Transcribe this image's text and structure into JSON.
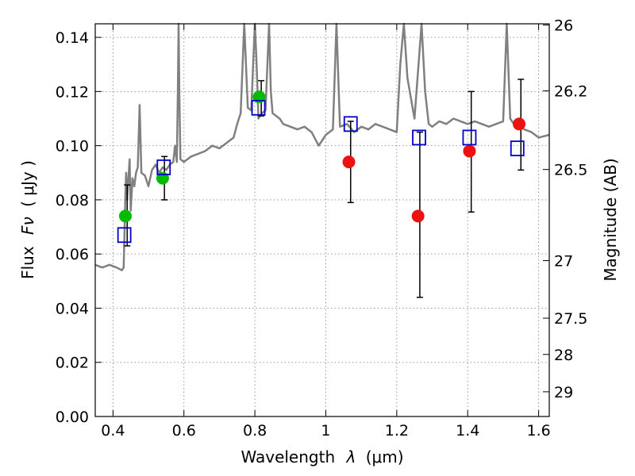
{
  "chart_data": {
    "type": "scatter",
    "xlabel_main": "Wavelength",
    "xlabel_symbol": "λ",
    "xlabel_unit": "(μm)",
    "ylabel_main": "Flux",
    "ylabel_symbol": "Fν",
    "ylabel_unit": "( μJy )",
    "y2label": "Magnitude (AB)",
    "xlim": [
      0.35,
      1.63
    ],
    "ylim": [
      0.0,
      0.145
    ],
    "grid": true,
    "x_ticks": [
      {
        "value": 0.4,
        "label": "0.4"
      },
      {
        "value": 0.6,
        "label": "0.6"
      },
      {
        "value": 0.8,
        "label": "0.8"
      },
      {
        "value": 1.0,
        "label": "1"
      },
      {
        "value": 1.2,
        "label": "1.2"
      },
      {
        "value": 1.4,
        "label": "1.4"
      },
      {
        "value": 1.6,
        "label": "1.6"
      }
    ],
    "y_ticks": [
      {
        "value": 0.0,
        "label": "0.00"
      },
      {
        "value": 0.02,
        "label": "0.02"
      },
      {
        "value": 0.04,
        "label": "0.04"
      },
      {
        "value": 0.06,
        "label": "0.06"
      },
      {
        "value": 0.08,
        "label": "0.08"
      },
      {
        "value": 0.1,
        "label": "0.10"
      },
      {
        "value": 0.12,
        "label": "0.12"
      },
      {
        "value": 0.14,
        "label": "0.14"
      }
    ],
    "y2_ticks": [
      {
        "value": 26,
        "label": "26"
      },
      {
        "value": 26.2,
        "label": "26.2"
      },
      {
        "value": 26.5,
        "label": "26.5"
      },
      {
        "value": 27,
        "label": "27"
      },
      {
        "value": 27.5,
        "label": "27.5"
      },
      {
        "value": 28,
        "label": "28"
      },
      {
        "value": 29,
        "label": "29"
      }
    ],
    "colors": {
      "model": "#808080",
      "green": "#00bb00",
      "red": "#ee1111",
      "square": "#0000cc",
      "errorbar": "#000000",
      "grid": "#999999"
    },
    "model_spectrum": {
      "x": [
        0.35,
        0.37,
        0.39,
        0.41,
        0.425,
        0.43,
        0.432,
        0.435,
        0.437,
        0.44,
        0.443,
        0.447,
        0.45,
        0.455,
        0.46,
        0.465,
        0.47,
        0.475,
        0.48,
        0.49,
        0.5,
        0.51,
        0.52,
        0.53,
        0.54,
        0.55,
        0.56,
        0.57,
        0.575,
        0.58,
        0.583,
        0.585,
        0.587,
        0.59,
        0.6,
        0.62,
        0.64,
        0.66,
        0.68,
        0.7,
        0.72,
        0.74,
        0.75,
        0.76,
        0.77,
        0.78,
        0.79,
        0.795,
        0.8,
        0.805,
        0.81,
        0.815,
        0.82,
        0.83,
        0.84,
        0.845,
        0.85,
        0.86,
        0.87,
        0.88,
        0.9,
        0.92,
        0.94,
        0.96,
        0.98,
        1.0,
        1.02,
        1.03,
        1.04,
        1.06,
        1.08,
        1.1,
        1.12,
        1.14,
        1.16,
        1.18,
        1.2,
        1.21,
        1.22,
        1.23,
        1.25,
        1.27,
        1.28,
        1.29,
        1.3,
        1.32,
        1.34,
        1.36,
        1.38,
        1.4,
        1.42,
        1.44,
        1.46,
        1.48,
        1.5,
        1.51,
        1.52,
        1.53,
        1.54,
        1.56,
        1.58,
        1.6,
        1.63
      ],
      "y": [
        0.056,
        0.055,
        0.056,
        0.055,
        0.054,
        0.055,
        0.065,
        0.082,
        0.09,
        0.08,
        0.087,
        0.095,
        0.076,
        0.088,
        0.085,
        0.09,
        0.092,
        0.115,
        0.09,
        0.089,
        0.085,
        0.091,
        0.093,
        0.09,
        0.092,
        0.091,
        0.093,
        0.094,
        0.1,
        0.094,
        0.12,
        0.145,
        0.12,
        0.095,
        0.094,
        0.096,
        0.097,
        0.098,
        0.1,
        0.099,
        0.101,
        0.103,
        0.108,
        0.112,
        0.145,
        0.114,
        0.113,
        0.13,
        0.145,
        0.13,
        0.11,
        0.111,
        0.112,
        0.113,
        0.145,
        0.12,
        0.112,
        0.111,
        0.11,
        0.108,
        0.107,
        0.106,
        0.107,
        0.105,
        0.1,
        0.104,
        0.106,
        0.145,
        0.107,
        0.108,
        0.105,
        0.107,
        0.106,
        0.108,
        0.107,
        0.106,
        0.105,
        0.13,
        0.145,
        0.125,
        0.11,
        0.145,
        0.12,
        0.108,
        0.107,
        0.109,
        0.108,
        0.11,
        0.109,
        0.108,
        0.109,
        0.108,
        0.107,
        0.108,
        0.109,
        0.145,
        0.11,
        0.108,
        0.107,
        0.106,
        0.105,
        0.103,
        0.104
      ]
    },
    "model_spike_top": [
      0.575,
      0.585,
      0.77,
      0.8,
      0.84,
      1.03,
      1.22,
      1.27,
      1.51
    ],
    "series": [
      {
        "marker": "green",
        "points": [
          {
            "x": 0.435,
            "y": 0.074
          },
          {
            "x": 0.54,
            "y": 0.088
          },
          {
            "x": 0.812,
            "y": 0.118
          }
        ]
      },
      {
        "marker": "red",
        "points": [
          {
            "x": 1.065,
            "y": 0.094
          },
          {
            "x": 1.26,
            "y": 0.074
          },
          {
            "x": 1.405,
            "y": 0.098
          },
          {
            "x": 1.545,
            "y": 0.108
          }
        ]
      },
      {
        "marker": "square",
        "points": [
          {
            "x": 0.432,
            "y": 0.067
          },
          {
            "x": 0.543,
            "y": 0.092
          },
          {
            "x": 0.81,
            "y": 0.114
          },
          {
            "x": 1.07,
            "y": 0.108
          },
          {
            "x": 1.263,
            "y": 0.103
          },
          {
            "x": 1.405,
            "y": 0.103
          },
          {
            "x": 1.54,
            "y": 0.099
          }
        ]
      }
    ],
    "error_bars": [
      {
        "x": 0.44,
        "low": 0.063,
        "high": 0.0855
      },
      {
        "x": 0.545,
        "low": 0.08,
        "high": 0.096
      },
      {
        "x": 0.818,
        "low": 0.111,
        "high": 0.124
      },
      {
        "x": 1.07,
        "low": 0.079,
        "high": 0.109
      },
      {
        "x": 1.265,
        "low": 0.044,
        "high": 0.105
      },
      {
        "x": 1.41,
        "low": 0.0755,
        "high": 0.12
      },
      {
        "x": 1.55,
        "low": 0.091,
        "high": 0.1245
      }
    ]
  }
}
